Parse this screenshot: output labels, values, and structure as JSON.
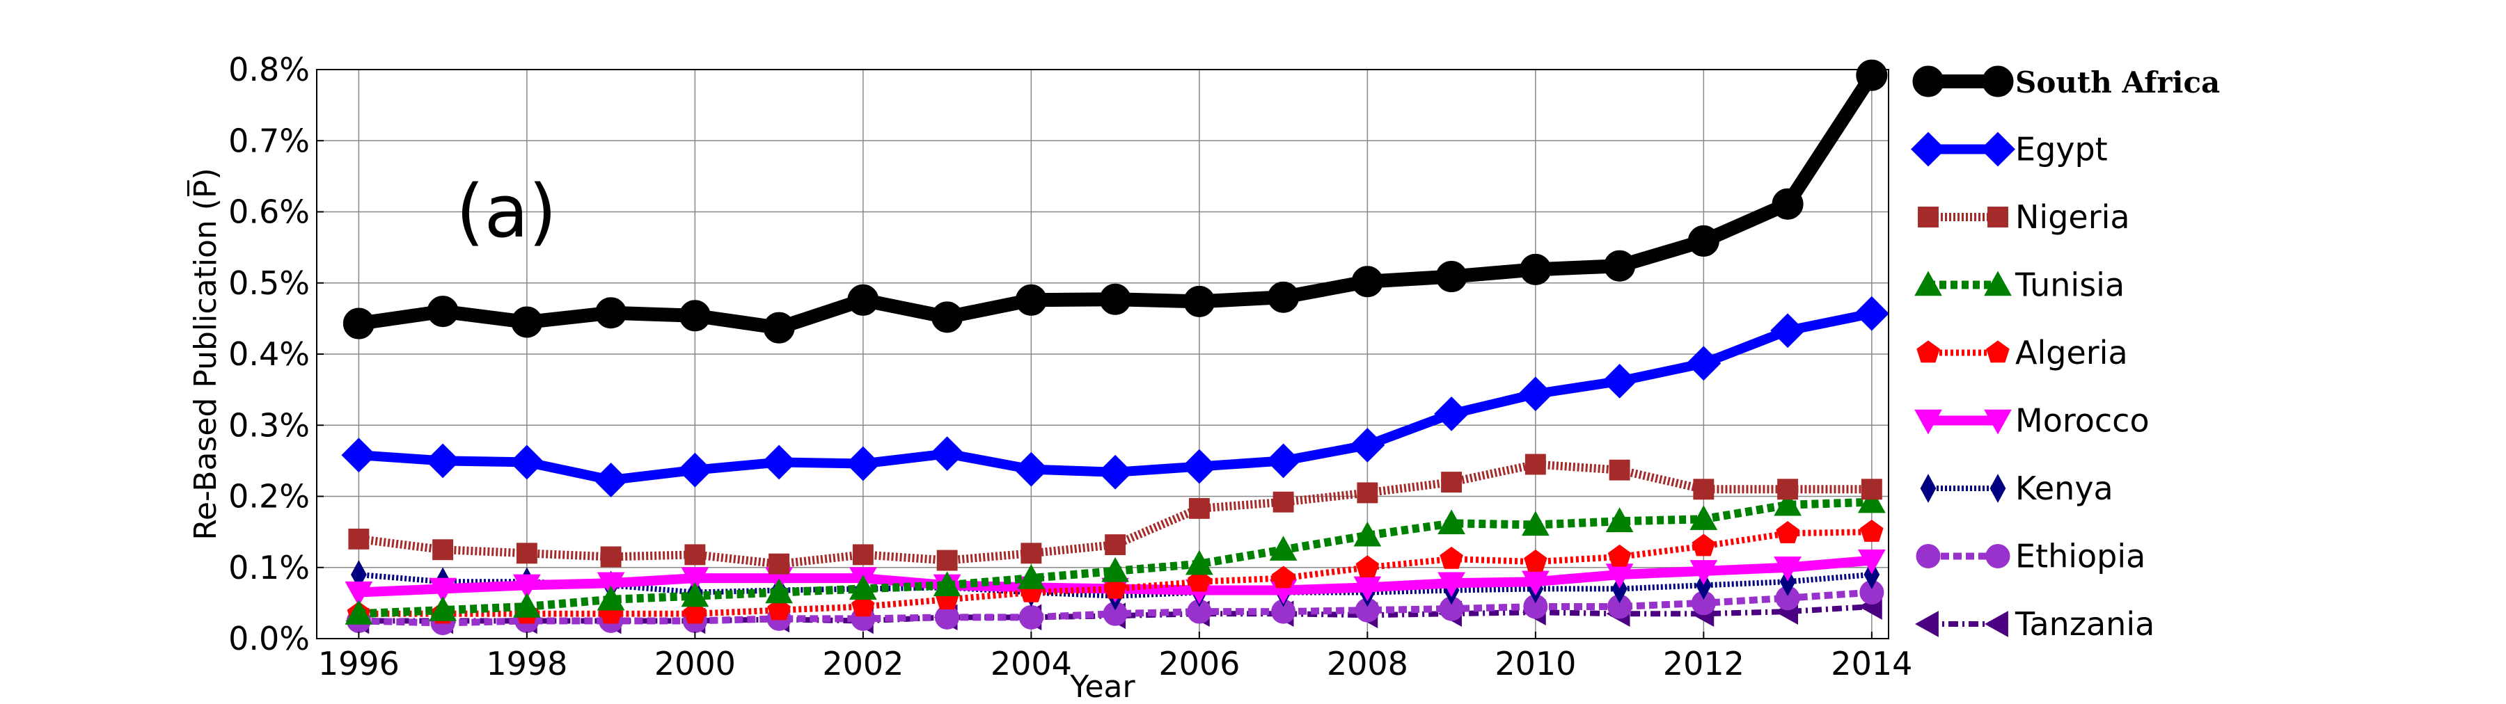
{
  "chart_data": {
    "type": "line",
    "title": "",
    "annotation": "(a)",
    "xlabel": "Year",
    "ylabel": "Re-Based Publication (P̅)",
    "xlim": [
      1995.5,
      2014.2
    ],
    "ylim": [
      0,
      0.8
    ],
    "x_ticks": [
      1996,
      1998,
      2000,
      2002,
      2004,
      2006,
      2008,
      2010,
      2012,
      2014
    ],
    "y_ticks": [
      0.0,
      0.1,
      0.2,
      0.3,
      0.4,
      0.5,
      0.6,
      0.7,
      0.8
    ],
    "y_tick_labels": [
      "0.0%",
      "0.1%",
      "0.2%",
      "0.3%",
      "0.4%",
      "0.5%",
      "0.6%",
      "0.7%",
      "0.8%"
    ],
    "x_tick_labels": [
      "1996",
      "1998",
      "2000",
      "2002",
      "2004",
      "2006",
      "2008",
      "2010",
      "2012",
      "2014"
    ],
    "grid": true,
    "legend_position": "right-outside",
    "x": [
      1996,
      1997,
      1998,
      1999,
      2000,
      2001,
      2002,
      2003,
      2004,
      2005,
      2006,
      2007,
      2008,
      2009,
      2010,
      2011,
      2012,
      2013,
      2014
    ],
    "series": [
      {
        "name": "Tanzania",
        "color": "#4b0082",
        "marker": "triangle-left",
        "style": "dashdot",
        "values": [
          0.025,
          0.025,
          0.025,
          0.025,
          0.025,
          0.027,
          0.025,
          0.03,
          0.03,
          0.032,
          0.035,
          0.035,
          0.033,
          0.035,
          0.037,
          0.035,
          0.035,
          0.038,
          0.045
        ]
      },
      {
        "name": "Ethiopia",
        "color": "#9932cc",
        "marker": "circle",
        "style": "dashed",
        "values": [
          0.025,
          0.022,
          0.025,
          0.025,
          0.025,
          0.028,
          0.028,
          0.03,
          0.03,
          0.035,
          0.038,
          0.038,
          0.04,
          0.042,
          0.045,
          0.045,
          0.05,
          0.057,
          0.065
        ]
      },
      {
        "name": "Kenya",
        "color": "#000080",
        "marker": "thin-diamond",
        "style": "dotted",
        "values": [
          0.09,
          0.08,
          0.08,
          0.075,
          0.065,
          0.068,
          0.07,
          0.072,
          0.065,
          0.06,
          0.065,
          0.065,
          0.065,
          0.068,
          0.07,
          0.07,
          0.075,
          0.08,
          0.09
        ]
      },
      {
        "name": "Morocco",
        "color": "#ff00ff",
        "marker": "triangle-down",
        "style": "solid",
        "values": [
          0.065,
          0.07,
          0.075,
          0.078,
          0.085,
          0.085,
          0.085,
          0.075,
          0.072,
          0.07,
          0.068,
          0.068,
          0.072,
          0.078,
          0.08,
          0.09,
          0.095,
          0.1,
          0.11
        ]
      },
      {
        "name": "Algeria",
        "color": "#ff0000",
        "marker": "pentagon",
        "style": "dotted",
        "values": [
          0.035,
          0.035,
          0.035,
          0.035,
          0.035,
          0.04,
          0.045,
          0.055,
          0.065,
          0.07,
          0.08,
          0.085,
          0.1,
          0.112,
          0.108,
          0.115,
          0.13,
          0.148,
          0.15
        ]
      },
      {
        "name": "Tunisia",
        "color": "#008000",
        "marker": "triangle-up",
        "style": "dotted",
        "values": [
          0.035,
          0.04,
          0.045,
          0.055,
          0.06,
          0.065,
          0.07,
          0.075,
          0.085,
          0.095,
          0.105,
          0.125,
          0.145,
          0.162,
          0.16,
          0.165,
          0.168,
          0.188,
          0.192
        ]
      },
      {
        "name": "Nigeria",
        "color": "#a52a2a",
        "marker": "square",
        "style": "dotted",
        "values": [
          0.14,
          0.125,
          0.12,
          0.115,
          0.118,
          0.105,
          0.118,
          0.11,
          0.12,
          0.132,
          0.183,
          0.192,
          0.205,
          0.22,
          0.245,
          0.237,
          0.21,
          0.21,
          0.21
        ]
      },
      {
        "name": "Egypt",
        "color": "#0000ff",
        "marker": "diamond",
        "style": "solid",
        "values": [
          0.258,
          0.25,
          0.248,
          0.223,
          0.237,
          0.248,
          0.246,
          0.26,
          0.238,
          0.234,
          0.242,
          0.25,
          0.272,
          0.316,
          0.344,
          0.362,
          0.387,
          0.433,
          0.457
        ]
      },
      {
        "name": "South Africa",
        "color": "#000000",
        "marker": "circle",
        "style": "solid",
        "values": [
          0.443,
          0.46,
          0.445,
          0.458,
          0.454,
          0.437,
          0.476,
          0.452,
          0.476,
          0.477,
          0.474,
          0.48,
          0.502,
          0.509,
          0.519,
          0.524,
          0.559,
          0.611,
          0.792
        ]
      }
    ],
    "legend_order": [
      "South Africa",
      "Egypt",
      "Nigeria",
      "Tunisia",
      "Algeria",
      "Morocco",
      "Kenya",
      "Ethiopia",
      "Tanzania"
    ]
  }
}
